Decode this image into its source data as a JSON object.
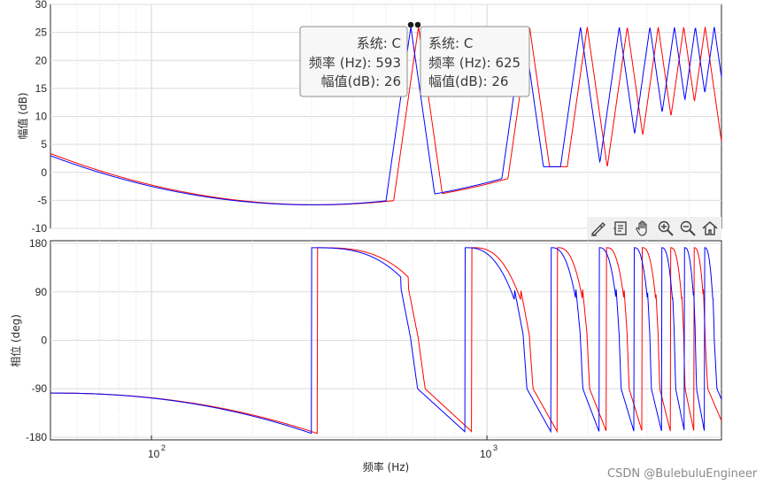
{
  "chart_data": [
    {
      "type": "line",
      "panel": "magnitude",
      "ylabel": "幅值 (dB)",
      "xscale": "log",
      "xlim": [
        50,
        5000
      ],
      "ylim": [
        -10,
        30
      ],
      "yticks": [
        "30",
        "25",
        "20",
        "15",
        "10",
        "5",
        "0",
        "-5",
        "-10"
      ],
      "grid": true,
      "series": [
        {
          "color": "#0000ff",
          "role": "blue",
          "peak_Hz": [
            593,
            1285,
            1900,
            2480,
            3060,
            3620,
            4180,
            4760
          ]
        },
        {
          "color": "#ff0000",
          "role": "red",
          "peak_Hz": [
            625,
            1340,
            1990,
            2620,
            3240,
            3860,
            4470
          ]
        }
      ],
      "samples_blue": [
        [
          50,
          5.4
        ],
        [
          100,
          -0.5
        ],
        [
          200,
          -5.0
        ],
        [
          300,
          -5.8
        ],
        [
          400,
          -4.3
        ],
        [
          500,
          0
        ],
        [
          560,
          8
        ],
        [
          593,
          26
        ],
        [
          630,
          8
        ],
        [
          700,
          0
        ],
        [
          800,
          -4.4
        ],
        [
          900,
          -5.7
        ],
        [
          1000,
          -5.0
        ],
        [
          1150,
          1
        ],
        [
          1285,
          26
        ]
      ],
      "samples_red": [
        [
          50,
          6.1
        ],
        [
          100,
          0
        ],
        [
          200,
          -4.8
        ],
        [
          300,
          -5.8
        ],
        [
          420,
          -4.3
        ],
        [
          530,
          0
        ],
        [
          590,
          8
        ],
        [
          625,
          26
        ],
        [
          670,
          8
        ],
        [
          750,
          0
        ],
        [
          850,
          -4.4
        ],
        [
          950,
          -5.7
        ],
        [
          1050,
          -5.0
        ],
        [
          1200,
          1
        ],
        [
          1340,
          26
        ]
      ],
      "datatips": [
        {
          "line1": "系统: C",
          "line2": "频率 (Hz): 593",
          "line3": "幅值(dB): 26"
        },
        {
          "line1": "系统: C",
          "line2": "频率 (Hz): 625",
          "line3": "幅值(dB): 26"
        }
      ]
    },
    {
      "type": "line",
      "panel": "phase",
      "ylabel": "相位 (deg)",
      "xlabel": "频率  (Hz)",
      "xscale": "log",
      "xlim": [
        50,
        5000
      ],
      "ylim": [
        -185,
        185
      ],
      "yticks": [
        "180",
        "90",
        "0",
        "-90",
        "-180"
      ],
      "xticks": [
        {
          "base": "10",
          "exp": "2",
          "value": 100
        },
        {
          "base": "10",
          "exp": "3",
          "value": 1000
        }
      ],
      "grid": true,
      "samples_blue": [
        [
          50,
          -98
        ],
        [
          150,
          -118
        ],
        [
          285,
          -170
        ],
        [
          297,
          170
        ],
        [
          500,
          130
        ],
        [
          570,
          90
        ],
        [
          593,
          0
        ],
        [
          620,
          -80
        ],
        [
          870,
          -175
        ],
        [
          885,
          170
        ],
        [
          1100,
          120
        ],
        [
          1260,
          90
        ],
        [
          1285,
          0
        ],
        [
          1310,
          -80
        ],
        [
          1530,
          -170
        ]
      ],
      "samples_red": [
        [
          50,
          -97
        ],
        [
          150,
          -116
        ],
        [
          295,
          -165
        ],
        [
          307,
          172
        ],
        [
          520,
          130
        ],
        [
          600,
          90
        ],
        [
          625,
          0
        ],
        [
          655,
          -80
        ],
        [
          910,
          -175
        ],
        [
          930,
          172
        ],
        [
          1150,
          120
        ],
        [
          1310,
          90
        ],
        [
          1340,
          0
        ],
        [
          1370,
          -80
        ],
        [
          1600,
          -170
        ]
      ]
    }
  ],
  "toolbar": {
    "icons": [
      "brush-icon",
      "datatip-icon",
      "pan-icon",
      "zoom-in-icon",
      "zoom-out-icon",
      "home-icon"
    ]
  },
  "watermark": "CSDN @BulebuluEngineer"
}
